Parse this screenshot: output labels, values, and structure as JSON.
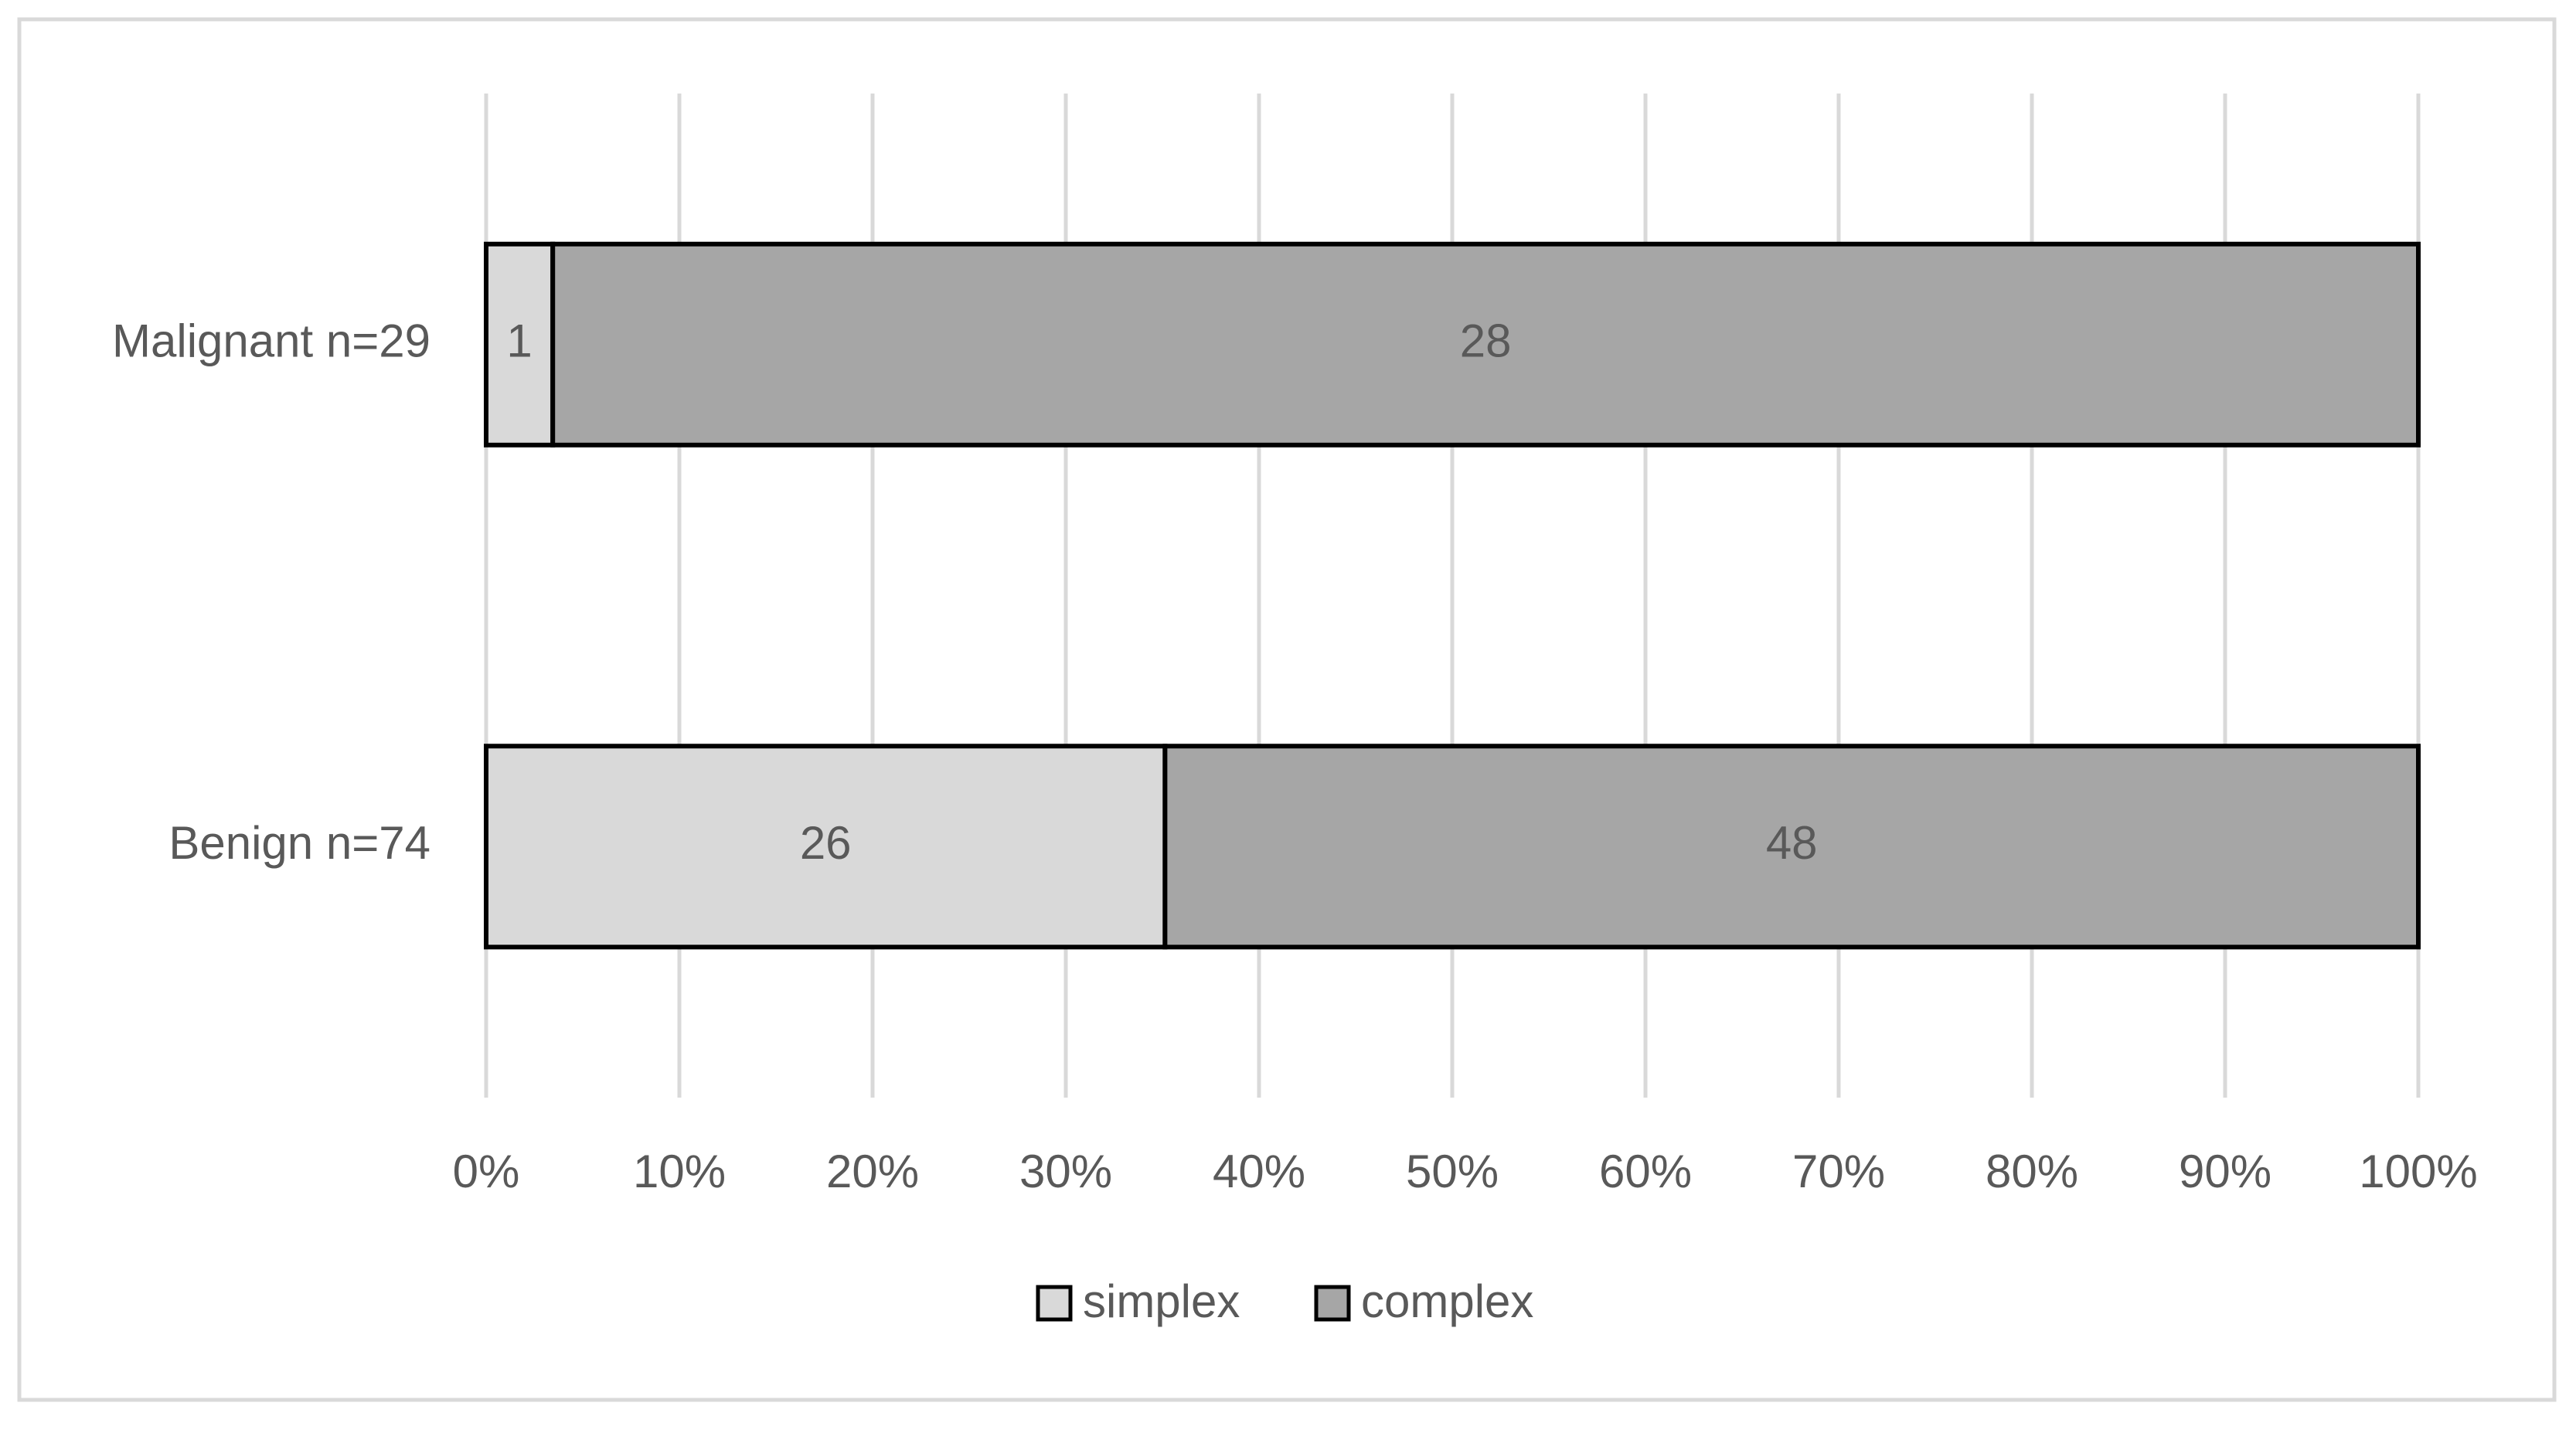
{
  "chart_data": {
    "type": "bar",
    "orientation": "horizontal",
    "stacking": "percent",
    "categories": [
      "Malignant n=29",
      "Benign n=74"
    ],
    "series": [
      {
        "name": "simplex",
        "color": "#d9d9d9",
        "values": [
          1,
          26
        ]
      },
      {
        "name": "complex",
        "color": "#a6a6a6",
        "values": [
          28,
          48
        ]
      }
    ],
    "xlim": [
      0,
      100
    ],
    "xticks": [
      {
        "value": 0,
        "label": "0%"
      },
      {
        "value": 10,
        "label": "10%"
      },
      {
        "value": 20,
        "label": "20%"
      },
      {
        "value": 30,
        "label": "30%"
      },
      {
        "value": 40,
        "label": "40%"
      },
      {
        "value": 50,
        "label": "50%"
      },
      {
        "value": 60,
        "label": "60%"
      },
      {
        "value": 70,
        "label": "70%"
      },
      {
        "value": 80,
        "label": "80%"
      },
      {
        "value": 90,
        "label": "90%"
      },
      {
        "value": 100,
        "label": "100%"
      }
    ],
    "grid": true,
    "legend": "bottom"
  }
}
